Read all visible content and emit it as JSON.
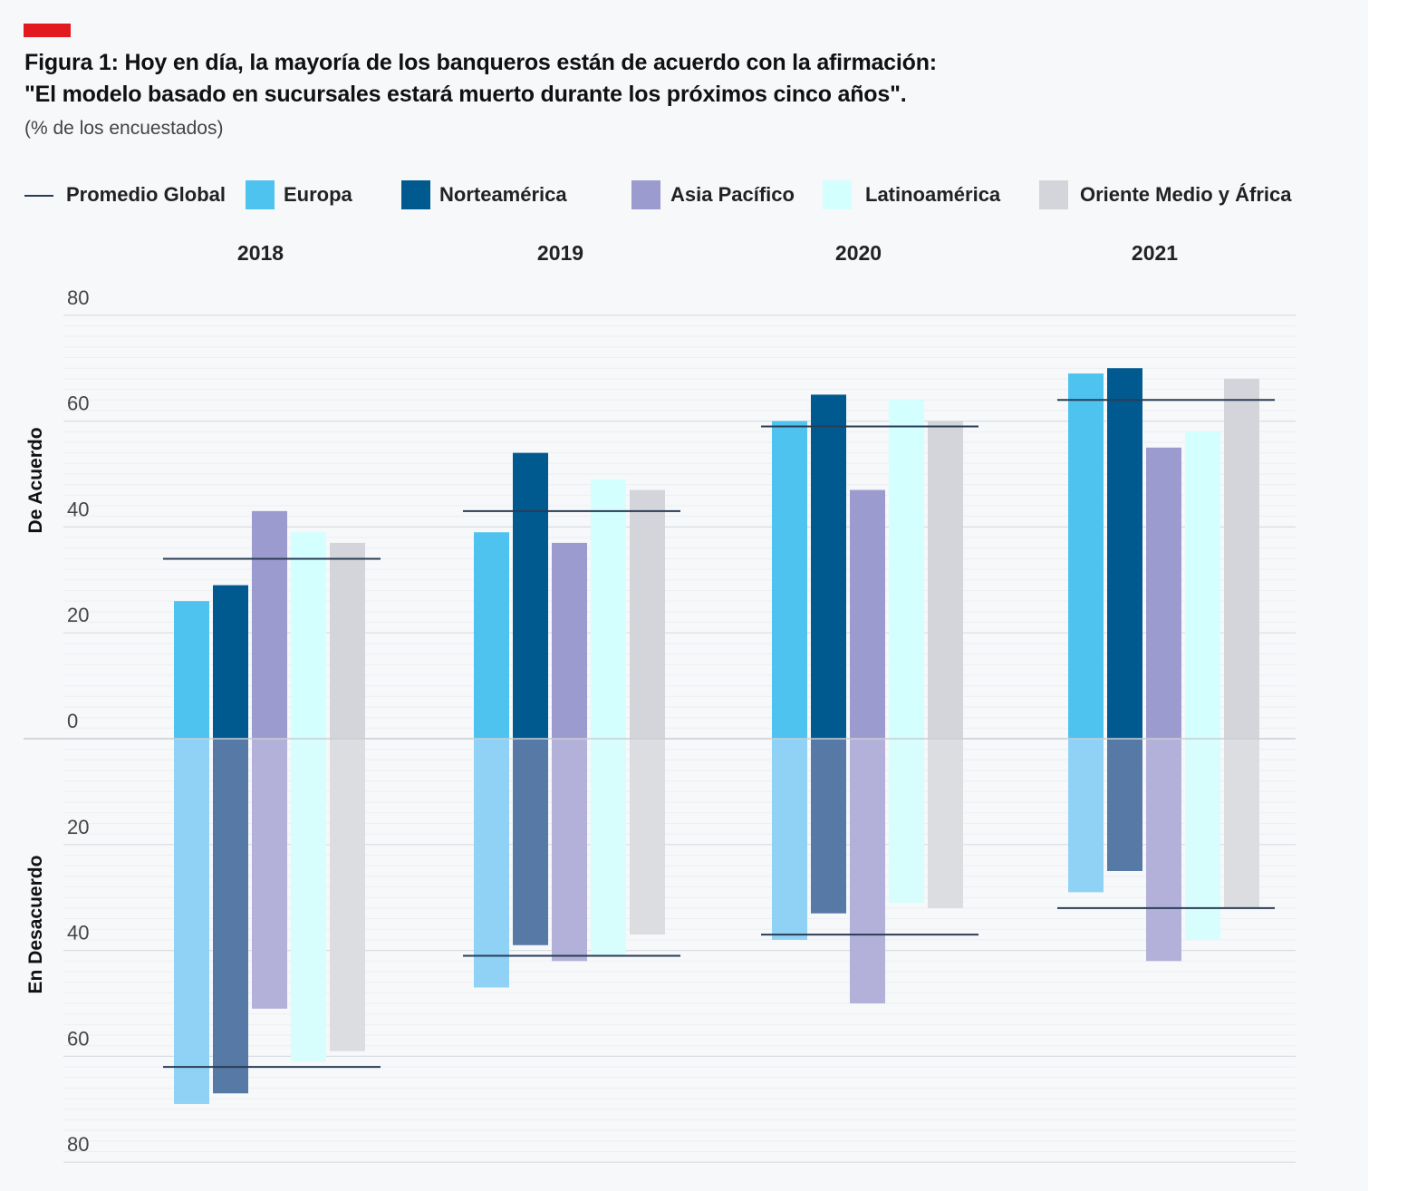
{
  "header": {
    "title_line1": "Figura 1: Hoy en día, la mayoría de los banqueros están de acuerdo con la afirmación:",
    "title_line2": "\"El modelo basado en sucursales estará muerto durante los próximos cinco años\".",
    "subtitle": "(% de los encuestados)"
  },
  "legend": {
    "average_label": "Promedio Global",
    "items": [
      {
        "label": "Europa",
        "color": "#4fc3ef"
      },
      {
        "label": "Norteamérica",
        "color": "#005a8f"
      },
      {
        "label": "Asia Pacífico",
        "color": "#9c9bcf"
      },
      {
        "label": "Latinoamérica",
        "color": "#d3ffff"
      },
      {
        "label": "Oriente Medio y África",
        "color": "#d4d5da"
      }
    ]
  },
  "axis_labels": {
    "top": "De Acuerdo",
    "bottom": "En Desacuerdo"
  },
  "chart_data": {
    "type": "bar",
    "title": "Figura 1: Hoy en día, la mayoría de los banqueros están de acuerdo con la afirmación: \"El modelo basado en sucursales estará muerto durante los próximos cinco años\".",
    "subtitle": "(% de los encuestados)",
    "ylabel_top": "De Acuerdo",
    "ylabel_bottom": "En Desacuerdo",
    "ylim": [
      -80,
      80
    ],
    "yticks": [
      80,
      60,
      40,
      20,
      0,
      20,
      40,
      60,
      80
    ],
    "categories": [
      "2018",
      "2019",
      "2020",
      "2021"
    ],
    "series": [
      {
        "name": "Europa",
        "color": "#4fc3ef",
        "color_disagree": "#8fd2f6",
        "agree": [
          26,
          39,
          60,
          69
        ],
        "disagree": [
          69,
          47,
          38,
          29
        ]
      },
      {
        "name": "Norteamérica",
        "color": "#005a8f",
        "color_disagree": "#5679a6",
        "agree": [
          29,
          54,
          65,
          70
        ],
        "disagree": [
          67,
          39,
          33,
          25
        ]
      },
      {
        "name": "Asia Pacífico",
        "color": "#9c9bcf",
        "color_disagree": "#b3b1da",
        "agree": [
          43,
          37,
          47,
          55
        ],
        "disagree": [
          51,
          42,
          50,
          42
        ]
      },
      {
        "name": "Latinoamérica",
        "color": "#d3ffff",
        "color_disagree": "#d7fdfd",
        "agree": [
          39,
          49,
          64,
          58
        ],
        "disagree": [
          61,
          41,
          31,
          38
        ]
      },
      {
        "name": "Oriente Medio y África",
        "color": "#d4d5da",
        "color_disagree": "#dcdde1",
        "agree": [
          37,
          47,
          60,
          68
        ],
        "disagree": [
          59,
          37,
          32,
          32
        ]
      }
    ],
    "global_average": {
      "name": "Promedio Global",
      "agree": [
        34,
        43,
        59,
        64
      ],
      "disagree": [
        62,
        41,
        37,
        32
      ]
    },
    "grid": true
  }
}
